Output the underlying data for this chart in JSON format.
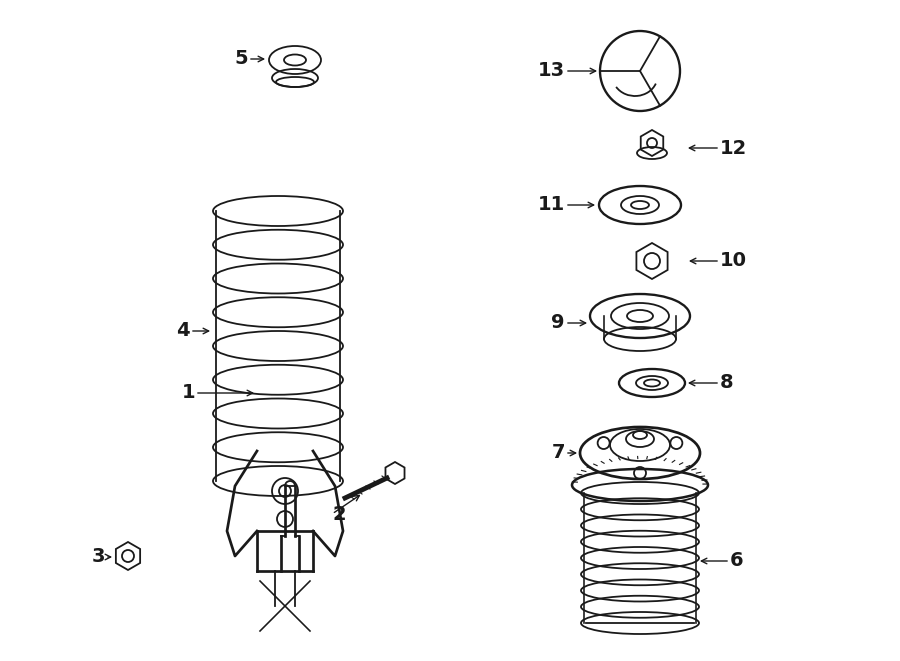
{
  "bg_color": "#ffffff",
  "lc": "#1a1a1a",
  "lw": 1.3,
  "fig_w": 9.0,
  "fig_h": 6.61,
  "dpi": 100
}
